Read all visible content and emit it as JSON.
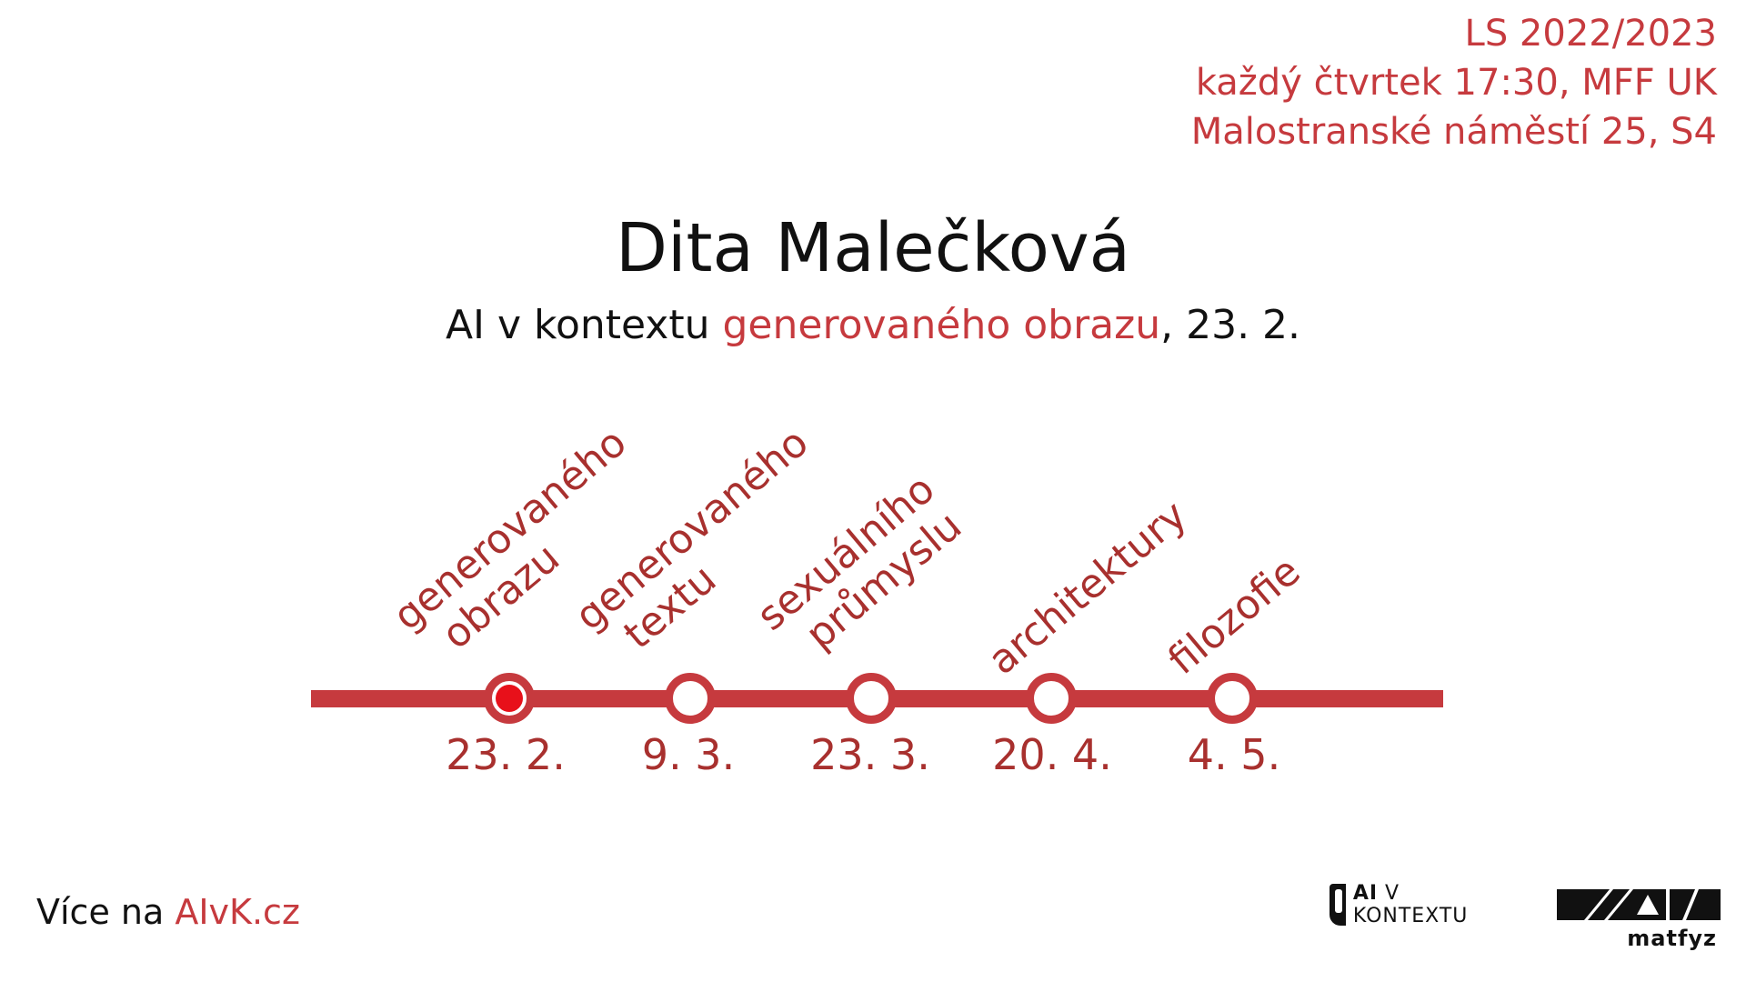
{
  "info": {
    "semester": "LS 2022/2023",
    "schedule": "každý čtvrtek 17:30, MFF UK",
    "location": "Malostranské náměstí 25, S4"
  },
  "speaker": "Dita Malečková",
  "talk": {
    "prefix": "AI v kontextu ",
    "highlight": "generovaného obrazu",
    "suffix": ", 23. 2."
  },
  "timeline": {
    "stations": [
      {
        "topic_line1": "generovaného",
        "topic_line2": "obrazu",
        "date": "23. 2.",
        "active": true
      },
      {
        "topic_line1": "generovaného",
        "topic_line2": "textu",
        "date": "9. 3.",
        "active": false
      },
      {
        "topic_line1": "sexuálního",
        "topic_line2": "průmyslu",
        "date": "23. 3.",
        "active": false
      },
      {
        "topic_line1": "architektury",
        "topic_line2": "",
        "date": "20. 4.",
        "active": false
      },
      {
        "topic_line1": "filozofie",
        "topic_line2": "",
        "date": "4. 5.",
        "active": false
      }
    ]
  },
  "footer": {
    "prefix": "Více na ",
    "link": "AIvK.cz"
  },
  "logos": {
    "ai_bold": "AI",
    "ai_rest": " V KONTEXTU",
    "mff_word": "matfyz"
  },
  "colors": {
    "accent": "#c63a3e",
    "active_station": "#e8101a",
    "text": "#111111"
  }
}
